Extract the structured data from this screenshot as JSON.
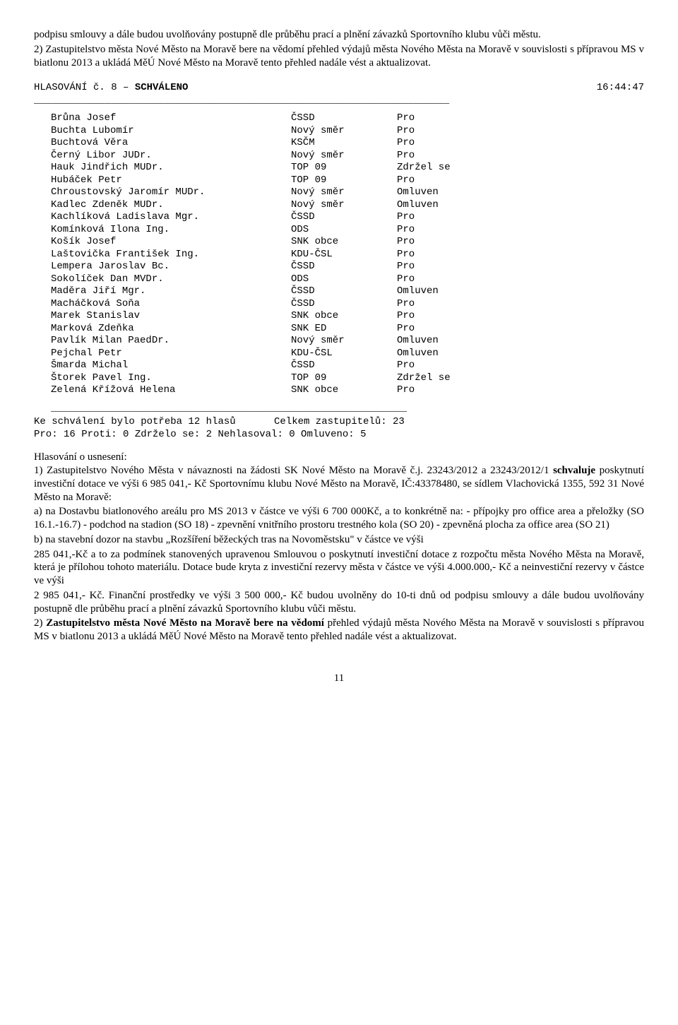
{
  "intro": {
    "p1": "podpisu smlouvy a dále budou uvolňovány postupně dle průběhu prací a plnění závazků Sportovního klubu vůči městu.",
    "p2": "2) Zastupitelstvo města Nové Město na Moravě bere na vědomí přehled výdajů města Nového Města na Moravě v souvislosti s přípravou MS v biatlonu 2013 a ukládá MěÚ Nové Město na Moravě tento přehled nadále vést a aktualizovat."
  },
  "vote_header": {
    "left_prefix": "HLASOVÁNÍ č. 8 – ",
    "left_bold": "SCHVÁLENO",
    "right": "16:44:47"
  },
  "hr": "______________________________________________________________________",
  "hr_short": "____________________________________________________________",
  "votes": [
    {
      "name": "Brůna Josef",
      "party": "ČSSD",
      "vote": "Pro"
    },
    {
      "name": "Buchta Lubomír",
      "party": "Nový směr",
      "vote": "Pro"
    },
    {
      "name": "Buchtová Věra",
      "party": "KSČM",
      "vote": "Pro"
    },
    {
      "name": "Černý Libor JUDr.",
      "party": "Nový směr",
      "vote": "Pro"
    },
    {
      "name": "Hauk Jindřich MUDr.",
      "party": "TOP 09",
      "vote": "Zdržel se"
    },
    {
      "name": "Hubáček Petr",
      "party": "TOP 09",
      "vote": "Pro"
    },
    {
      "name": "Chroustovský Jaromír MUDr.",
      "party": "Nový směr",
      "vote": "Omluven"
    },
    {
      "name": "Kadlec Zdeněk MUDr.",
      "party": "Nový směr",
      "vote": "Omluven"
    },
    {
      "name": "Kachlíková Ladislava Mgr.",
      "party": "ČSSD",
      "vote": "Pro"
    },
    {
      "name": "Komínková Ilona Ing.",
      "party": "ODS",
      "vote": "Pro"
    },
    {
      "name": "Košík Josef",
      "party": "SNK obce",
      "vote": "Pro"
    },
    {
      "name": "Laštovička František Ing.",
      "party": "KDU-ČSL",
      "vote": "Pro"
    },
    {
      "name": "Lempera Jaroslav Bc.",
      "party": "ČSSD",
      "vote": "Pro"
    },
    {
      "name": "Sokolíček Dan MVDr.",
      "party": "ODS",
      "vote": "Pro"
    },
    {
      "name": "Maděra Jiří Mgr.",
      "party": "ČSSD",
      "vote": "Omluven"
    },
    {
      "name": "Macháčková Soňa",
      "party": "ČSSD",
      "vote": "Pro"
    },
    {
      "name": "Marek Stanislav",
      "party": "SNK obce",
      "vote": "Pro"
    },
    {
      "name": "Marková Zdeňka",
      "party": "SNK ED",
      "vote": "Pro"
    },
    {
      "name": "Pavlík Milan PaedDr.",
      "party": "Nový směr",
      "vote": "Omluven"
    },
    {
      "name": "Pejchal Petr",
      "party": "KDU-ČSL",
      "vote": "Omluven"
    },
    {
      "name": "Šmarda Michal",
      "party": "ČSSD",
      "vote": "Pro"
    },
    {
      "name": "Štorek Pavel Ing.",
      "party": "TOP 09",
      "vote": "Zdržel se"
    },
    {
      "name": "Zelená Křížová Helena",
      "party": "SNK obce",
      "vote": "Pro"
    }
  ],
  "summary": {
    "line1_left": "Ke schválení bylo potřeba 12 hlasů",
    "line1_right": "Celkem zastupitelů: 23",
    "line2": "Pro: 16     Proti: 0     Zdrželo se: 2     Nehlasoval: 0     Omluveno: 5"
  },
  "resolution": {
    "heading": "Hlasování o usnesení:",
    "p1_prefix": "1) Zastupitelstvo Nového Města v návaznosti na žádosti SK Nové Město na Moravě č.j. 23243/2012 a 23243/2012/1 ",
    "p1_bold": "schvaluje",
    "p1_suffix": " poskytnutí investiční dotace ve výši 6 985 041,- Kč Sportovnímu klubu Nové Město na Moravě, IČ:43378480, se sídlem Vlachovická 1355, 592 31 Nové Město na Moravě:",
    "pa": "a) na Dostavbu biatlonového areálu pro MS 2013 v částce ve výši 6 700 000Kč, a to konkrétně na: - přípojky pro office area a přeložky (SO 16.1.-16.7) - podchod na stadion (SO 18) - zpevnění vnitřního prostoru trestného kola (SO 20) - zpevněná plocha za office area (SO 21)",
    "pb": "b) na stavební dozor na stavbu „Rozšíření běžeckých tras na Novoměstsku\" v částce ve výši",
    "pb2": "285 041,-Kč a to za podmínek stanovených upravenou Smlouvou o poskytnutí investiční dotace z rozpočtu města Nového Města na Moravě, která je přílohou tohoto materiálu. Dotace bude kryta z investiční rezervy města v částce ve výši 4.000.000,- Kč a neinvestiční rezervy v částce ve výši",
    "pb3": "2 985 041,- Kč. Finanční prostředky ve výši 3 500 000,- Kč budou uvolněny do 10-ti dnů od podpisu smlouvy a dále budou uvolňovány postupně dle průběhu prací a plnění závazků Sportovního klubu vůči městu.",
    "p2_prefix": "2) ",
    "p2_bold": "Zastupitelstvo města Nové Město na Moravě bere na vědomí",
    "p2_suffix": " přehled výdajů města Nového Města na Moravě v souvislosti s přípravou MS v biatlonu 2013 a ukládá MěÚ Nové Město na Moravě tento přehled nadále vést a aktualizovat."
  },
  "page_number": "11"
}
